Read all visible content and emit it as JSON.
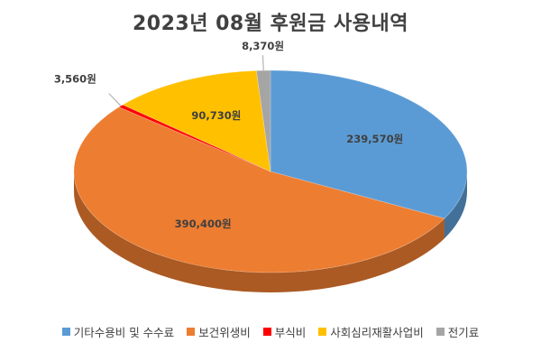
{
  "chart_data": {
    "type": "pie",
    "title": "2023년 08월 후원금 사용내역",
    "categories": [
      "기타수용비 및 수수료",
      "보건위생비",
      "부식비",
      "사회심리재활사업비",
      "전기료"
    ],
    "values": [
      239570,
      390400,
      3560,
      90730,
      8370
    ],
    "data_labels": [
      "239,570원",
      "390,400원",
      "3,560원",
      "90,730원",
      "8,370원"
    ],
    "colors": [
      "#5B9BD5",
      "#ED7D31",
      "#FF0000",
      "#FFC000",
      "#A5A5A5"
    ],
    "legend_position": "bottom"
  }
}
